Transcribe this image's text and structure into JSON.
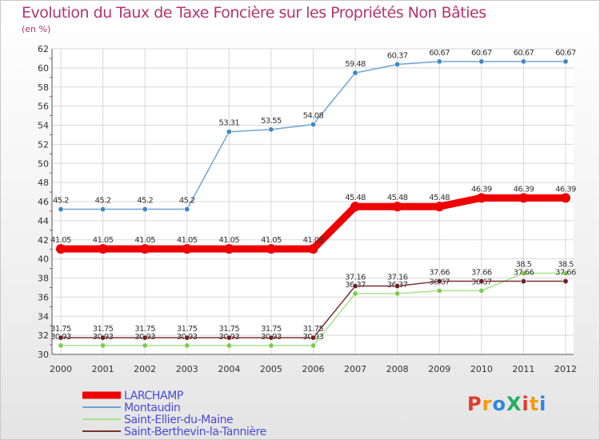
{
  "header": {
    "title": "Evolution du Taux de Taxe Foncière sur les Propriétés Non Bâties",
    "unit": "(en %)"
  },
  "logo": {
    "text": "ProXiti",
    "colors": [
      "#e23b2e",
      "#f39c12",
      "#2e86de",
      "#27ae60",
      "#e23b2e",
      "#f39c12",
      "#2e86de"
    ]
  },
  "chart_data": {
    "type": "line",
    "title": "Evolution du Taux de Taxe Foncière sur les Propriétés Non Bâties",
    "ylabel": "(en %)",
    "x": [
      "2000",
      "2001",
      "2002",
      "2003",
      "2004",
      "2005",
      "2006",
      "2007",
      "2008",
      "2009",
      "2010",
      "2011",
      "2012"
    ],
    "ylim": [
      30,
      62
    ],
    "yticks": [
      30,
      32,
      34,
      36,
      38,
      40,
      42,
      44,
      46,
      48,
      50,
      52,
      54,
      56,
      58,
      60,
      62
    ],
    "grid": true,
    "legend": "bottom-left",
    "series": [
      {
        "name": "Montaudin",
        "color": "#6ea6d4",
        "marker": "#3d86c6",
        "values": [
          45.2,
          45.2,
          45.2,
          45.2,
          53.31,
          53.55,
          54.08,
          59.48,
          60.37,
          60.67,
          60.67,
          60.67,
          60.67
        ],
        "labels": [
          "45.2",
          "45.2",
          "45.2",
          "45.2",
          "53.31",
          "53.55",
          "54.08",
          "59.48",
          "60.37",
          "60.67",
          "60.67",
          "60.67",
          "60.67"
        ]
      },
      {
        "name": "Saint-Ellier-du-Maine",
        "color": "#a6e38a",
        "marker": "#7ccc4c",
        "values": [
          30.93,
          30.93,
          30.93,
          30.93,
          30.93,
          30.93,
          30.93,
          36.37,
          36.37,
          36.67,
          36.67,
          38.5,
          38.5
        ],
        "labels": [
          "30.93",
          "30.93",
          "30.93",
          "30.93",
          "30.93",
          "30.93",
          "30.93",
          "36.37",
          "36.37",
          "36.67",
          "36.67",
          "38.5",
          "38.5"
        ]
      },
      {
        "name": "Saint-Berthevin-la-Tannière",
        "color": "#7a3030",
        "marker": "#6a2020",
        "values": [
          31.75,
          31.75,
          31.75,
          31.75,
          31.75,
          31.75,
          31.75,
          37.16,
          37.16,
          37.66,
          37.66,
          37.66,
          37.66
        ],
        "labels": [
          "31.75",
          "31.75",
          "31.75",
          "31.75",
          "31.75",
          "31.75",
          "31.75",
          "37.16",
          "37.16",
          "37.66",
          "37.66",
          "37.66",
          "37.66"
        ]
      },
      {
        "name": "LARCHAMP",
        "color": "#ee0000",
        "marker": "#ee0000",
        "values": [
          41.05,
          41.05,
          41.05,
          41.05,
          41.05,
          41.05,
          41.05,
          45.48,
          45.48,
          45.48,
          46.39,
          46.39,
          46.39
        ],
        "labels": [
          "41.05",
          "41.05",
          "41.05",
          "41.05",
          "41.05",
          "41.05",
          "41.05",
          "45.48",
          "45.48",
          "45.48",
          "46.39",
          "46.39",
          "46.39"
        ]
      }
    ],
    "legend_order": [
      "LARCHAMP",
      "Montaudin",
      "Saint-Ellier-du-Maine",
      "Saint-Berthevin-la-Tannière"
    ]
  }
}
